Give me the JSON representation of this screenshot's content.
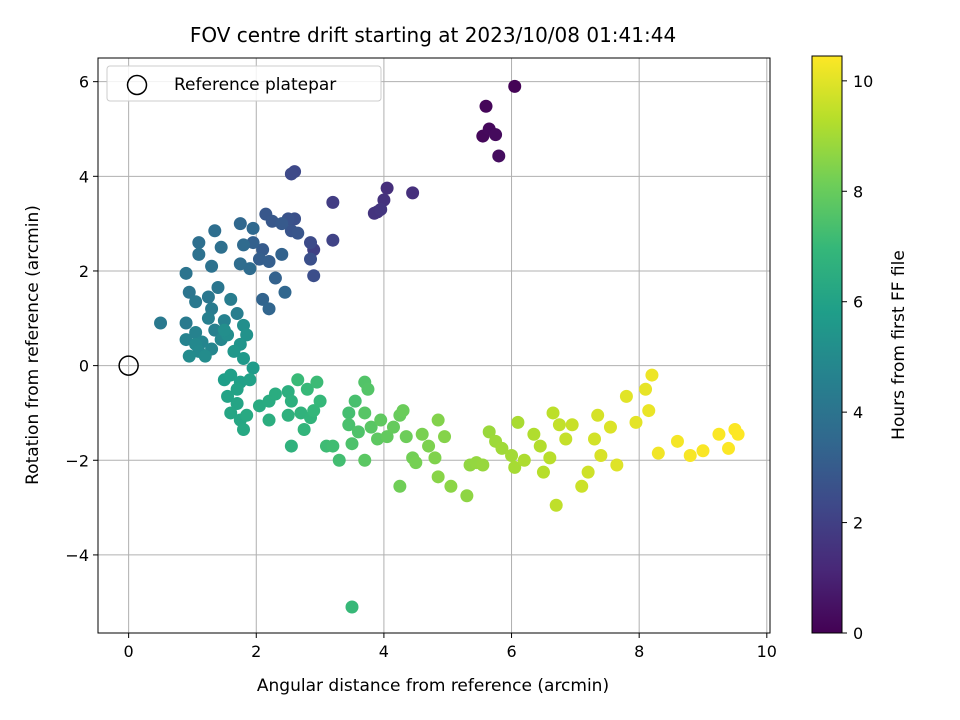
{
  "chart_data": {
    "type": "scatter",
    "title": "FOV centre drift starting at 2023/10/08 01:41:44",
    "xlabel": "Angular distance from reference (arcmin)",
    "ylabel": "Rotation from reference (arcmin)",
    "xlim": [
      -0.48,
      10.05
    ],
    "ylim": [
      -5.65,
      6.5
    ],
    "xticks": [
      0,
      2,
      4,
      6,
      8,
      10
    ],
    "yticks": [
      -4,
      -2,
      0,
      2,
      4,
      6
    ],
    "xtick_labels": [
      "0",
      "2",
      "4",
      "6",
      "8",
      "10"
    ],
    "ytick_labels": [
      "−4",
      "−2",
      "0",
      "2",
      "4",
      "6"
    ],
    "grid": true,
    "colormap": "viridis",
    "colorbar": {
      "label": "Hours from first FF file",
      "range": [
        0,
        10.45
      ],
      "ticks": [
        0,
        2,
        4,
        6,
        8,
        10
      ],
      "tick_labels": [
        "0",
        "2",
        "4",
        "6",
        "8",
        "10"
      ]
    },
    "legend": {
      "position": "top-left",
      "entries": [
        {
          "label": "Reference platepar",
          "marker": "open-circle"
        }
      ]
    },
    "reference_point": {
      "x": 0,
      "y": 0
    },
    "points": [
      [
        6.05,
        5.9,
        0.05
      ],
      [
        5.6,
        5.48,
        0.15
      ],
      [
        5.55,
        4.85,
        0.2
      ],
      [
        5.65,
        5.0,
        0.25
      ],
      [
        5.75,
        4.88,
        0.3
      ],
      [
        5.8,
        4.43,
        0.35
      ],
      [
        4.05,
        3.75,
        1.4
      ],
      [
        4.0,
        3.5,
        1.5
      ],
      [
        4.45,
        3.65,
        1.45
      ],
      [
        3.9,
        3.25,
        1.55
      ],
      [
        3.85,
        3.22,
        1.6
      ],
      [
        3.95,
        3.3,
        1.65
      ],
      [
        3.2,
        3.45,
        1.9
      ],
      [
        2.9,
        2.45,
        2.0
      ],
      [
        3.2,
        2.65,
        2.1
      ],
      [
        2.6,
        4.1,
        2.3
      ],
      [
        2.55,
        4.05,
        2.35
      ],
      [
        2.85,
        2.6,
        2.4
      ],
      [
        2.9,
        1.9,
        2.5
      ],
      [
        2.85,
        2.25,
        2.55
      ],
      [
        2.6,
        3.1,
        2.6
      ],
      [
        2.5,
        3.1,
        2.7
      ],
      [
        2.55,
        2.85,
        2.75
      ],
      [
        2.65,
        2.8,
        2.8
      ],
      [
        2.15,
        3.2,
        2.85
      ],
      [
        2.25,
        3.05,
        2.9
      ],
      [
        2.4,
        3.0,
        2.95
      ],
      [
        2.1,
        2.45,
        3.0
      ],
      [
        2.05,
        2.25,
        3.1
      ],
      [
        2.2,
        2.2,
        3.15
      ],
      [
        1.95,
        2.6,
        3.2
      ],
      [
        2.3,
        1.85,
        3.25
      ],
      [
        2.4,
        2.35,
        3.3
      ],
      [
        2.1,
        1.4,
        3.35
      ],
      [
        2.2,
        1.2,
        3.4
      ],
      [
        2.45,
        1.55,
        3.45
      ],
      [
        1.75,
        3.0,
        3.5
      ],
      [
        1.95,
        2.9,
        3.55
      ],
      [
        1.8,
        2.55,
        3.6
      ],
      [
        1.9,
        2.05,
        3.65
      ],
      [
        1.75,
        2.15,
        3.7
      ],
      [
        1.35,
        2.85,
        3.75
      ],
      [
        1.1,
        2.6,
        3.8
      ],
      [
        1.45,
        2.5,
        3.85
      ],
      [
        1.1,
        2.35,
        3.9
      ],
      [
        1.3,
        2.1,
        3.95
      ],
      [
        0.9,
        1.95,
        4.0
      ],
      [
        0.95,
        1.55,
        4.05
      ],
      [
        1.4,
        1.65,
        4.1
      ],
      [
        1.25,
        1.45,
        4.15
      ],
      [
        1.05,
        1.35,
        4.2
      ],
      [
        0.5,
        0.9,
        4.25
      ],
      [
        0.9,
        0.9,
        4.3
      ],
      [
        1.3,
        1.2,
        4.35
      ],
      [
        1.6,
        1.4,
        4.4
      ],
      [
        1.7,
        1.1,
        4.45
      ],
      [
        1.25,
        1.0,
        4.5
      ],
      [
        1.35,
        0.75,
        4.55
      ],
      [
        1.5,
        0.95,
        4.6
      ],
      [
        1.05,
        0.7,
        4.65
      ],
      [
        0.9,
        0.55,
        4.7
      ],
      [
        1.15,
        0.5,
        4.75
      ],
      [
        1.3,
        0.35,
        4.8
      ],
      [
        1.45,
        0.55,
        4.85
      ],
      [
        1.05,
        0.45,
        4.9
      ],
      [
        1.1,
        0.3,
        4.95
      ],
      [
        0.95,
        0.2,
        5.0
      ],
      [
        1.2,
        0.2,
        5.05
      ],
      [
        1.55,
        0.65,
        5.1
      ],
      [
        1.5,
        0.75,
        5.15
      ],
      [
        1.8,
        0.85,
        5.2
      ],
      [
        1.85,
        0.65,
        5.3
      ],
      [
        1.75,
        0.45,
        5.4
      ],
      [
        1.65,
        0.3,
        5.5
      ],
      [
        1.8,
        0.15,
        5.6
      ],
      [
        1.95,
        -0.05,
        5.7
      ],
      [
        1.5,
        -0.3,
        5.8
      ],
      [
        1.6,
        -0.2,
        5.85
      ],
      [
        1.75,
        -0.35,
        5.9
      ],
      [
        1.9,
        -0.3,
        5.95
      ],
      [
        1.7,
        -0.5,
        6.0
      ],
      [
        1.55,
        -0.65,
        6.05
      ],
      [
        1.7,
        -0.8,
        6.1
      ],
      [
        1.6,
        -1.0,
        6.15
      ],
      [
        1.75,
        -1.15,
        6.2
      ],
      [
        1.8,
        -1.35,
        6.25
      ],
      [
        1.85,
        -1.05,
        6.3
      ],
      [
        2.05,
        -0.85,
        6.35
      ],
      [
        2.2,
        -0.75,
        6.4
      ],
      [
        2.3,
        -0.6,
        6.45
      ],
      [
        2.2,
        -1.15,
        6.5
      ],
      [
        2.5,
        -0.55,
        6.55
      ],
      [
        2.55,
        -0.75,
        6.6
      ],
      [
        2.5,
        -1.05,
        6.65
      ],
      [
        2.55,
        -1.7,
        6.7
      ],
      [
        2.7,
        -1.0,
        6.75
      ],
      [
        2.85,
        -1.1,
        6.8
      ],
      [
        2.75,
        -1.35,
        6.85
      ],
      [
        2.9,
        -0.95,
        6.9
      ],
      [
        3.0,
        -0.75,
        6.95
      ],
      [
        2.8,
        -0.5,
        7.0
      ],
      [
        2.65,
        -0.3,
        7.05
      ],
      [
        2.95,
        -0.35,
        7.1
      ],
      [
        3.1,
        -1.7,
        7.15
      ],
      [
        3.2,
        -1.7,
        7.2
      ],
      [
        3.3,
        -2.0,
        7.25
      ],
      [
        3.45,
        -1.0,
        7.3
      ],
      [
        3.55,
        -0.75,
        7.35
      ],
      [
        3.45,
        -1.25,
        7.4
      ],
      [
        3.5,
        -1.65,
        7.45
      ],
      [
        3.6,
        -1.4,
        7.5
      ],
      [
        3.7,
        -0.35,
        7.55
      ],
      [
        3.75,
        -0.5,
        7.6
      ],
      [
        3.7,
        -1.0,
        7.65
      ],
      [
        3.8,
        -1.3,
        7.7
      ],
      [
        3.7,
        -2.0,
        7.75
      ],
      [
        3.9,
        -1.55,
        7.8
      ],
      [
        3.95,
        -1.15,
        7.85
      ],
      [
        4.05,
        -1.5,
        7.9
      ],
      [
        4.15,
        -1.3,
        7.95
      ],
      [
        4.25,
        -1.05,
        8.0
      ],
      [
        4.3,
        -0.95,
        8.05
      ],
      [
        4.35,
        -1.5,
        8.1
      ],
      [
        4.25,
        -2.55,
        8.15
      ],
      [
        4.45,
        -1.95,
        8.2
      ],
      [
        4.5,
        -2.05,
        8.25
      ],
      [
        4.6,
        -1.45,
        8.3
      ],
      [
        4.7,
        -1.7,
        8.35
      ],
      [
        4.8,
        -1.95,
        8.4
      ],
      [
        4.85,
        -1.15,
        8.45
      ],
      [
        4.95,
        -1.5,
        8.5
      ],
      [
        4.85,
        -2.35,
        8.55
      ],
      [
        5.05,
        -2.55,
        8.6
      ],
      [
        5.3,
        -2.75,
        8.65
      ],
      [
        5.35,
        -2.1,
        8.7
      ],
      [
        5.45,
        -2.05,
        8.75
      ],
      [
        5.55,
        -2.1,
        8.8
      ],
      [
        5.65,
        -1.4,
        8.85
      ],
      [
        5.75,
        -1.6,
        8.9
      ],
      [
        5.85,
        -1.75,
        8.95
      ],
      [
        6.0,
        -1.9,
        9.0
      ],
      [
        6.05,
        -2.15,
        9.05
      ],
      [
        6.1,
        -1.2,
        9.1
      ],
      [
        6.2,
        -2.0,
        9.15
      ],
      [
        6.35,
        -1.45,
        9.2
      ],
      [
        6.45,
        -1.7,
        9.25
      ],
      [
        6.5,
        -2.25,
        9.3
      ],
      [
        6.6,
        -1.95,
        9.35
      ],
      [
        6.65,
        -1.0,
        9.4
      ],
      [
        6.7,
        -2.95,
        9.45
      ],
      [
        6.75,
        -1.25,
        9.5
      ],
      [
        6.85,
        -1.55,
        9.55
      ],
      [
        6.95,
        -1.25,
        9.6
      ],
      [
        7.1,
        -2.55,
        9.65
      ],
      [
        7.2,
        -2.25,
        9.7
      ],
      [
        7.3,
        -1.55,
        9.75
      ],
      [
        7.35,
        -1.05,
        9.8
      ],
      [
        7.4,
        -1.9,
        9.85
      ],
      [
        7.55,
        -1.3,
        9.9
      ],
      [
        7.65,
        -2.1,
        9.95
      ],
      [
        7.8,
        -0.65,
        10.0
      ],
      [
        7.95,
        -1.2,
        10.05
      ],
      [
        8.1,
        -0.5,
        10.1
      ],
      [
        8.15,
        -0.95,
        10.15
      ],
      [
        8.2,
        -0.2,
        10.2
      ],
      [
        8.3,
        -1.85,
        10.25
      ],
      [
        8.6,
        -1.6,
        10.3
      ],
      [
        8.8,
        -1.9,
        10.35
      ],
      [
        9.0,
        -1.8,
        10.38
      ],
      [
        9.25,
        -1.45,
        10.4
      ],
      [
        9.4,
        -1.75,
        10.42
      ],
      [
        9.5,
        -1.35,
        10.44
      ],
      [
        9.55,
        -1.45,
        10.45
      ],
      [
        3.5,
        -5.1,
        7.0
      ]
    ]
  }
}
